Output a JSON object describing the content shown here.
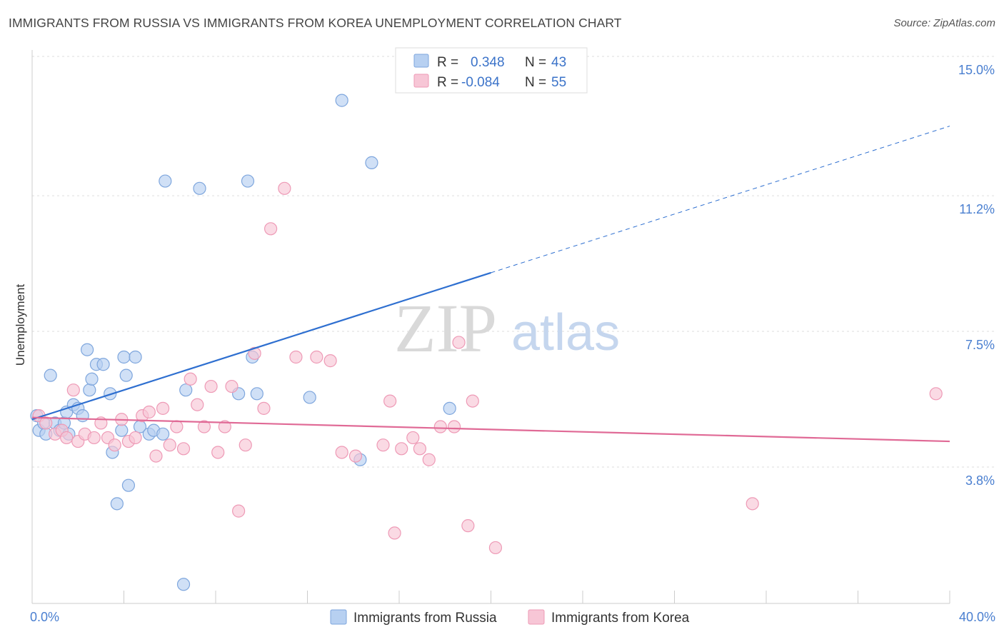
{
  "title": "IMMIGRANTS FROM RUSSIA VS IMMIGRANTS FROM KOREA UNEMPLOYMENT CORRELATION CHART",
  "source": "Source: ZipAtlas.com",
  "watermark": {
    "part1": "ZIP",
    "part2": "atlas"
  },
  "legend": {
    "rows": [
      {
        "r_label": "R =",
        "r_value": "0.348",
        "n_label": "N =",
        "n_value": "43"
      },
      {
        "r_label": "R =",
        "r_value": "-0.084",
        "n_label": "N =",
        "n_value": "55"
      }
    ]
  },
  "colors": {
    "russia_fill": "#b7d0f1",
    "russia_stroke": "#7ea6dd",
    "russia_line": "#2e6fd0",
    "korea_fill": "#f7c6d6",
    "korea_stroke": "#ee9ab6",
    "korea_line": "#e06a96",
    "grid": "#dddddd",
    "axis_text": "#4a7fd0"
  },
  "chart_data": {
    "type": "scatter",
    "title": "IMMIGRANTS FROM RUSSIA VS IMMIGRANTS FROM KOREA UNEMPLOYMENT CORRELATION CHART",
    "xlabel": "",
    "ylabel": "Unemployment",
    "xlim": [
      0,
      40
    ],
    "ylim": [
      0,
      15.5
    ],
    "x_tick_labels": [
      {
        "value": 0,
        "label": "0.0%"
      },
      {
        "value": 40,
        "label": "40.0%"
      }
    ],
    "y_tick_labels": [
      {
        "value": 3.8,
        "label": "3.8%"
      },
      {
        "value": 7.5,
        "label": "7.5%"
      },
      {
        "value": 11.2,
        "label": "11.2%"
      },
      {
        "value": 15.0,
        "label": "15.0%"
      }
    ],
    "y_gridlines": [
      3.8,
      7.5,
      11.2,
      15.0
    ],
    "grid": true,
    "legend_position": "top-center",
    "series": [
      {
        "name": "Immigrants from Russia",
        "color": "#b7d0f1",
        "r": 0.348,
        "n": 43,
        "trend": {
          "x0": 0,
          "y0": 5.1,
          "x1": 20,
          "y1": 9.1,
          "dash_to_x": 40,
          "dash_to_y": 13.1
        },
        "points": [
          [
            0.2,
            5.2
          ],
          [
            0.3,
            4.8
          ],
          [
            0.5,
            5.0
          ],
          [
            0.6,
            4.7
          ],
          [
            0.8,
            6.3
          ],
          [
            1.0,
            5.0
          ],
          [
            1.2,
            4.8
          ],
          [
            1.4,
            5.0
          ],
          [
            1.5,
            5.3
          ],
          [
            1.6,
            4.7
          ],
          [
            1.8,
            5.5
          ],
          [
            2.0,
            5.4
          ],
          [
            2.2,
            5.2
          ],
          [
            2.4,
            7.0
          ],
          [
            2.5,
            5.9
          ],
          [
            2.6,
            6.2
          ],
          [
            2.8,
            6.6
          ],
          [
            3.1,
            6.6
          ],
          [
            3.4,
            5.8
          ],
          [
            3.5,
            4.2
          ],
          [
            3.7,
            2.8
          ],
          [
            3.9,
            4.8
          ],
          [
            4.0,
            6.8
          ],
          [
            4.1,
            6.3
          ],
          [
            4.2,
            3.3
          ],
          [
            4.5,
            6.8
          ],
          [
            4.7,
            4.9
          ],
          [
            5.1,
            4.7
          ],
          [
            5.3,
            4.8
          ],
          [
            5.7,
            4.7
          ],
          [
            5.8,
            11.6
          ],
          [
            6.6,
            0.6
          ],
          [
            6.7,
            5.9
          ],
          [
            7.3,
            11.4
          ],
          [
            9.0,
            5.8
          ],
          [
            9.4,
            11.6
          ],
          [
            9.6,
            6.8
          ],
          [
            9.8,
            5.8
          ],
          [
            12.1,
            5.7
          ],
          [
            13.5,
            13.8
          ],
          [
            14.8,
            12.1
          ],
          [
            14.3,
            4.0
          ],
          [
            18.2,
            5.4
          ]
        ]
      },
      {
        "name": "Immigrants from Korea",
        "color": "#f7c6d6",
        "r": -0.084,
        "n": 55,
        "trend": {
          "x0": 0,
          "y0": 5.15,
          "x1": 40,
          "y1": 4.5
        },
        "points": [
          [
            0.3,
            5.2
          ],
          [
            0.6,
            5.0
          ],
          [
            1.0,
            4.7
          ],
          [
            1.3,
            4.8
          ],
          [
            1.5,
            4.6
          ],
          [
            1.8,
            5.9
          ],
          [
            2.0,
            4.5
          ],
          [
            2.3,
            4.7
          ],
          [
            2.7,
            4.6
          ],
          [
            3.0,
            5.0
          ],
          [
            3.3,
            4.6
          ],
          [
            3.6,
            4.4
          ],
          [
            3.9,
            5.1
          ],
          [
            4.2,
            4.5
          ],
          [
            4.5,
            4.6
          ],
          [
            4.8,
            5.2
          ],
          [
            5.1,
            5.3
          ],
          [
            5.4,
            4.1
          ],
          [
            5.7,
            5.4
          ],
          [
            6.0,
            4.4
          ],
          [
            6.3,
            4.9
          ],
          [
            6.6,
            4.3
          ],
          [
            6.9,
            6.2
          ],
          [
            7.2,
            5.5
          ],
          [
            7.5,
            4.9
          ],
          [
            7.8,
            6.0
          ],
          [
            8.1,
            4.2
          ],
          [
            8.4,
            4.9
          ],
          [
            8.7,
            6.0
          ],
          [
            9.0,
            2.6
          ],
          [
            9.3,
            4.4
          ],
          [
            9.7,
            6.9
          ],
          [
            10.1,
            5.4
          ],
          [
            10.4,
            10.3
          ],
          [
            11.0,
            11.4
          ],
          [
            11.5,
            6.8
          ],
          [
            12.4,
            6.8
          ],
          [
            13.0,
            6.7
          ],
          [
            13.5,
            4.2
          ],
          [
            14.1,
            4.1
          ],
          [
            15.3,
            4.4
          ],
          [
            15.6,
            5.6
          ],
          [
            15.8,
            2.0
          ],
          [
            16.1,
            4.3
          ],
          [
            16.6,
            4.6
          ],
          [
            16.9,
            4.3
          ],
          [
            17.3,
            4.0
          ],
          [
            17.8,
            4.9
          ],
          [
            18.4,
            4.9
          ],
          [
            18.6,
            7.2
          ],
          [
            19.0,
            2.2
          ],
          [
            19.2,
            5.6
          ],
          [
            20.2,
            1.6
          ],
          [
            31.4,
            2.8
          ],
          [
            39.4,
            5.8
          ]
        ]
      }
    ]
  }
}
